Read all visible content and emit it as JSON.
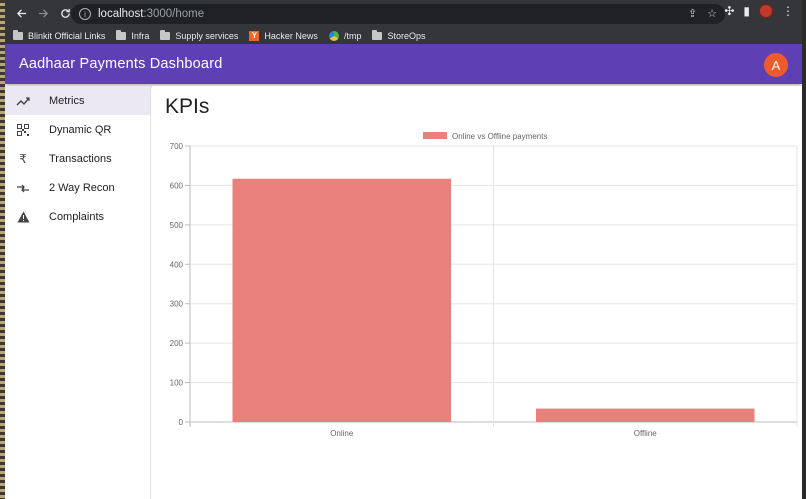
{
  "browser": {
    "url_host": "localhost",
    "url_path": ":3000/home",
    "bookmarks": [
      {
        "label": "Blinkit Official Links",
        "icon": "folder-icon"
      },
      {
        "label": "Infra",
        "icon": "folder-icon"
      },
      {
        "label": "Supply services",
        "icon": "folder-icon"
      },
      {
        "label": "Hacker News",
        "icon": "hacker-news-icon"
      },
      {
        "label": "/tmp",
        "icon": "tmp-favicon-icon"
      },
      {
        "label": "StoreOps",
        "icon": "folder-icon"
      }
    ]
  },
  "appbar": {
    "title": "Aadhaar Payments Dashboard",
    "avatar_letter": "A",
    "color": "#5e3fb4",
    "avatar_color": "#f05b2e"
  },
  "sidebar": {
    "items": [
      {
        "label": "Metrics",
        "icon": "trending-up-icon",
        "active": true
      },
      {
        "label": "Dynamic QR",
        "icon": "qr-code-icon",
        "active": false
      },
      {
        "label": "Transactions",
        "icon": "rupee-icon",
        "active": false
      },
      {
        "label": "2 Way Recon",
        "icon": "compare-arrows-icon",
        "active": false
      },
      {
        "label": "Complaints",
        "icon": "warning-icon",
        "active": false
      }
    ]
  },
  "main": {
    "title": "KPIs"
  },
  "chart_data": {
    "type": "bar",
    "categories": [
      "Online",
      "Offline"
    ],
    "series": [
      {
        "name": "Online vs Offline payments",
        "values": [
          617,
          34
        ],
        "color": "#e9807c"
      }
    ],
    "ylim": [
      0,
      700
    ],
    "yticks": [
      0,
      100,
      200,
      300,
      400,
      500,
      600,
      700
    ],
    "legend": "top",
    "grid": true
  }
}
